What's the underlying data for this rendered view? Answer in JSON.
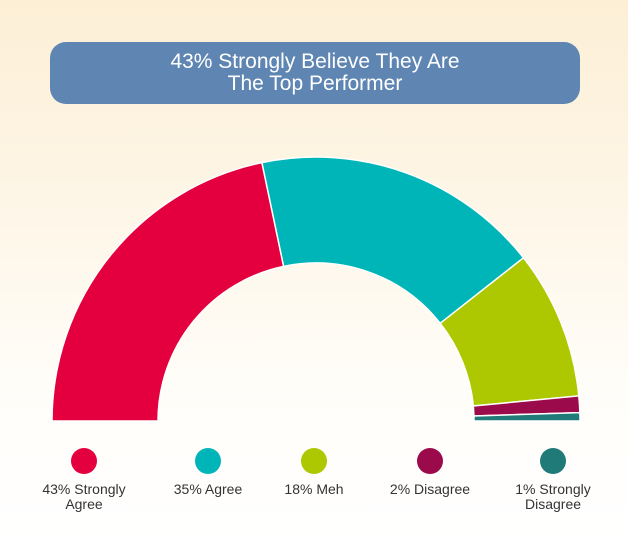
{
  "chart_data": {
    "type": "pie",
    "style": "semi-donut",
    "title_line1": "43% Strongly Believe They Are",
    "title_line2": "The Top Performer",
    "slices": [
      {
        "label": "43% Strongly Agree",
        "value": 43,
        "color": "#e4003f"
      },
      {
        "label": "35% Agree",
        "value": 35,
        "color": "#00b5b8"
      },
      {
        "label": "18% Meh",
        "value": 18,
        "color": "#adc800"
      },
      {
        "label": "2% Disagree",
        "value": 2,
        "color": "#9b0a4b"
      },
      {
        "label": "1% Strongly Disagree",
        "value": 1,
        "color": "#1f7a78"
      }
    ],
    "legend_labels": [
      "43% Strongly\nAgree",
      "35% Agree",
      "18% Meh",
      "2% Disagree",
      "1% Strongly\nDisagree"
    ],
    "legend_placement": "bottom"
  }
}
